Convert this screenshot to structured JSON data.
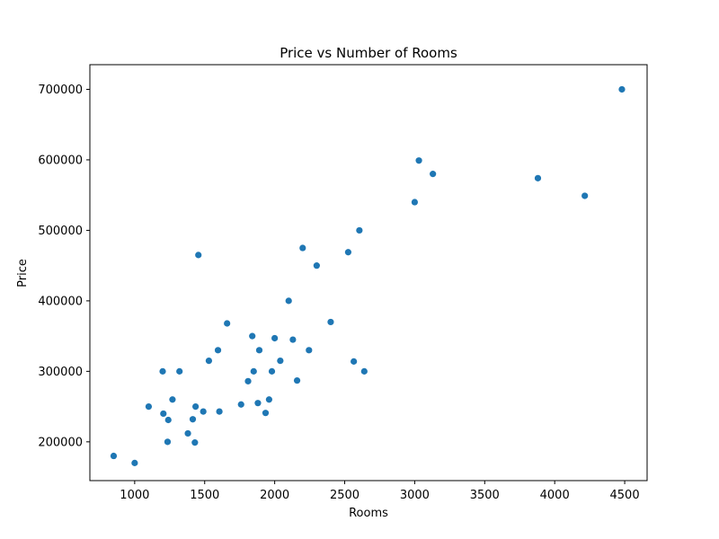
{
  "colors": {
    "point": "#1f77b4",
    "axis": "#000000",
    "background": "#ffffff"
  },
  "chart_data": {
    "type": "scatter",
    "title": "Price vs Number of Rooms",
    "xlabel": "Rooms",
    "ylabel": "Price",
    "xlim": [
      680,
      4660
    ],
    "ylim": [
      145000,
      735000
    ],
    "xticks": [
      1000,
      1500,
      2000,
      2500,
      3000,
      3500,
      4000,
      4500
    ],
    "yticks": [
      200000,
      300000,
      400000,
      500000,
      600000,
      700000
    ],
    "grid": false,
    "series": [
      {
        "points": [
          [
            850,
            180000
          ],
          [
            1000,
            170000
          ],
          [
            1100,
            250000
          ],
          [
            1200,
            300000
          ],
          [
            1205,
            240000
          ],
          [
            1235,
            200000
          ],
          [
            1240,
            231000
          ],
          [
            1270,
            260000
          ],
          [
            1320,
            300000
          ],
          [
            1380,
            212000
          ],
          [
            1415,
            232000
          ],
          [
            1430,
            199000
          ],
          [
            1435,
            250000
          ],
          [
            1455,
            465000
          ],
          [
            1490,
            243000
          ],
          [
            1530,
            315000
          ],
          [
            1595,
            330000
          ],
          [
            1605,
            243000
          ],
          [
            1660,
            368000
          ],
          [
            1760,
            253000
          ],
          [
            1810,
            286000
          ],
          [
            1840,
            350000
          ],
          [
            1850,
            300000
          ],
          [
            1880,
            255000
          ],
          [
            1890,
            330000
          ],
          [
            1935,
            241000
          ],
          [
            1960,
            260000
          ],
          [
            1980,
            300000
          ],
          [
            2000,
            347000
          ],
          [
            2040,
            315000
          ],
          [
            2100,
            400000
          ],
          [
            2130,
            345000
          ],
          [
            2160,
            287000
          ],
          [
            2200,
            475000
          ],
          [
            2245,
            330000
          ],
          [
            2300,
            450000
          ],
          [
            2400,
            370000
          ],
          [
            2525,
            469000
          ],
          [
            2565,
            314000
          ],
          [
            2605,
            500000
          ],
          [
            2640,
            300000
          ],
          [
            3000,
            540000
          ],
          [
            3030,
            599000
          ],
          [
            3130,
            580000
          ],
          [
            3880,
            574000
          ],
          [
            4215,
            549000
          ],
          [
            4480,
            700000
          ]
        ]
      }
    ]
  }
}
